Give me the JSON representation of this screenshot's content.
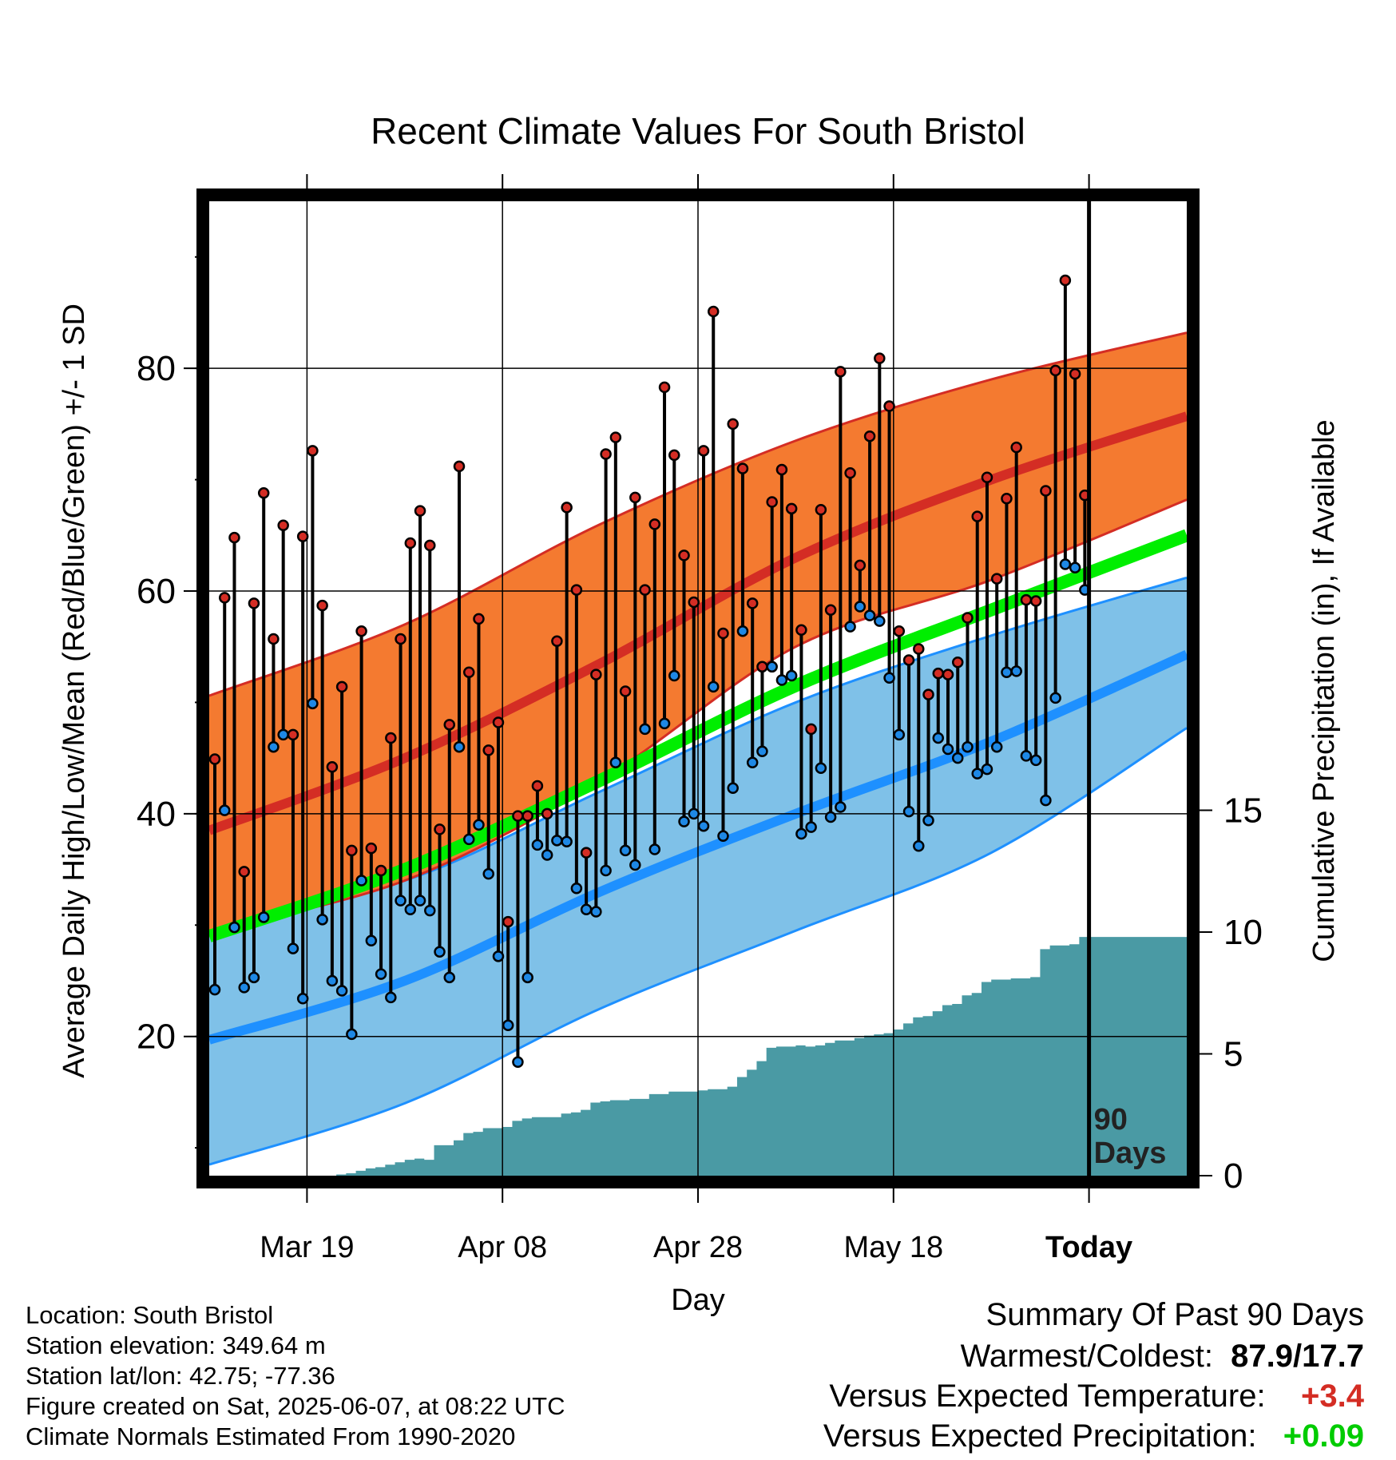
{
  "chart_data": {
    "type": "line",
    "title": "Recent Climate Values For South Bristol",
    "xlabel": "Day",
    "ylabel": "Average Daily High/Low/Mean (Red/Blue/Green) +/- 1 SD",
    "y2label": "Cumulative Precipitation (in), If Available",
    "ylim": [
      7.5,
      95
    ],
    "y2lim": [
      0,
      40
    ],
    "y_ticks": [
      20,
      40,
      60,
      80
    ],
    "y2_ticks": [
      0,
      5,
      10,
      15
    ],
    "x_start": "2025-03-09",
    "x_end": "2025-06-17",
    "x_ticks": [
      {
        "day": "2025-03-19",
        "label": "Mar 19"
      },
      {
        "day": "2025-04-08",
        "label": "Apr 08"
      },
      {
        "day": "2025-04-28",
        "label": "Apr 28"
      },
      {
        "day": "2025-05-18",
        "label": "May 18"
      },
      {
        "day": "2025-06-07",
        "label": "Today"
      }
    ],
    "today_label": "90\nDays",
    "grid": true,
    "normals": {
      "days": [
        "2025-03-09",
        "2025-03-29",
        "2025-04-18",
        "2025-05-08",
        "2025-05-28",
        "2025-06-17"
      ],
      "high_mean": [
        38.5,
        45,
        53.5,
        63,
        70,
        75.7
      ],
      "high_upper": [
        50.6,
        57,
        66,
        73.5,
        79,
        83.2
      ],
      "high_lower": [
        29.5,
        34,
        43,
        55,
        61,
        68.2
      ],
      "low_mean": [
        19.7,
        25,
        33,
        40,
        46.5,
        54.3
      ],
      "low_upper": [
        30.7,
        34,
        42,
        50,
        56,
        61.2
      ],
      "low_lower": [
        8.5,
        14,
        22.5,
        29.5,
        36.5,
        47.7
      ],
      "mean": [
        29,
        35,
        43,
        51.5,
        58.3,
        65
      ]
    },
    "series": [
      {
        "name": "High",
        "x": [
          "2025-03-09",
          "2025-03-10",
          "2025-03-11",
          "2025-03-12",
          "2025-03-13",
          "2025-03-14",
          "2025-03-15",
          "2025-03-16",
          "2025-03-17",
          "2025-03-18",
          "2025-03-19",
          "2025-03-20",
          "2025-03-21",
          "2025-03-22",
          "2025-03-23",
          "2025-03-24",
          "2025-03-25",
          "2025-03-26",
          "2025-03-27",
          "2025-03-28",
          "2025-03-29",
          "2025-03-30",
          "2025-03-31",
          "2025-04-01",
          "2025-04-02",
          "2025-04-03",
          "2025-04-04",
          "2025-04-05",
          "2025-04-06",
          "2025-04-07",
          "2025-04-08",
          "2025-04-09",
          "2025-04-10",
          "2025-04-11",
          "2025-04-12",
          "2025-04-13",
          "2025-04-14",
          "2025-04-15",
          "2025-04-16",
          "2025-04-17",
          "2025-04-18",
          "2025-04-19",
          "2025-04-20",
          "2025-04-21",
          "2025-04-22",
          "2025-04-23",
          "2025-04-24",
          "2025-04-25",
          "2025-04-26",
          "2025-04-27",
          "2025-04-28",
          "2025-04-29",
          "2025-04-30",
          "2025-05-01",
          "2025-05-02",
          "2025-05-03",
          "2025-05-04",
          "2025-05-05",
          "2025-05-06",
          "2025-05-07",
          "2025-05-08",
          "2025-05-09",
          "2025-05-10",
          "2025-05-11",
          "2025-05-12",
          "2025-05-13",
          "2025-05-14",
          "2025-05-15",
          "2025-05-16",
          "2025-05-17",
          "2025-05-18",
          "2025-05-19",
          "2025-05-20",
          "2025-05-21",
          "2025-05-22",
          "2025-05-23",
          "2025-05-24",
          "2025-05-25",
          "2025-05-26",
          "2025-05-27",
          "2025-05-28",
          "2025-05-29",
          "2025-05-30",
          "2025-05-31",
          "2025-06-01",
          "2025-06-02",
          "2025-06-03",
          "2025-06-04",
          "2025-06-05",
          "2025-06-06"
        ],
        "values": [
          44.9,
          59.4,
          64.8,
          34.8,
          58.9,
          68.8,
          55.7,
          65.9,
          47.1,
          64.9,
          72.6,
          58.7,
          44.2,
          51.4,
          36.7,
          56.4,
          36.9,
          34.9,
          46.8,
          55.7,
          64.3,
          67.2,
          64.1,
          38.6,
          48,
          71.2,
          52.7,
          57.5,
          45.7,
          48.2,
          30.3,
          39.8,
          39.8,
          42.5,
          40,
          55.5,
          67.5,
          60.1,
          36.5,
          52.5,
          72.3,
          73.8,
          51,
          68.4,
          60.1,
          66,
          78.3,
          72.2,
          63.2,
          59,
          72.6,
          85.1,
          56.2,
          75,
          71,
          58.9,
          53.2,
          68,
          70.9,
          67.4,
          56.5,
          47.6,
          67.3,
          58.3,
          79.7,
          70.6,
          62.3,
          73.9,
          80.9,
          76.6,
          56.4,
          53.8,
          54.8,
          50.7,
          52.6,
          52.5,
          53.6,
          57.6,
          66.7,
          70.2,
          61.1,
          68.3,
          72.9,
          59.2,
          59.1,
          69,
          79.8,
          87.9,
          79.5,
          68.6
        ]
      },
      {
        "name": "Low",
        "x": [
          "2025-03-09",
          "2025-03-10",
          "2025-03-11",
          "2025-03-12",
          "2025-03-13",
          "2025-03-14",
          "2025-03-15",
          "2025-03-16",
          "2025-03-17",
          "2025-03-18",
          "2025-03-19",
          "2025-03-20",
          "2025-03-21",
          "2025-03-22",
          "2025-03-23",
          "2025-03-24",
          "2025-03-25",
          "2025-03-26",
          "2025-03-27",
          "2025-03-28",
          "2025-03-29",
          "2025-03-30",
          "2025-03-31",
          "2025-04-01",
          "2025-04-02",
          "2025-04-03",
          "2025-04-04",
          "2025-04-05",
          "2025-04-06",
          "2025-04-07",
          "2025-04-08",
          "2025-04-09",
          "2025-04-10",
          "2025-04-11",
          "2025-04-12",
          "2025-04-13",
          "2025-04-14",
          "2025-04-15",
          "2025-04-16",
          "2025-04-17",
          "2025-04-18",
          "2025-04-19",
          "2025-04-20",
          "2025-04-21",
          "2025-04-22",
          "2025-04-23",
          "2025-04-24",
          "2025-04-25",
          "2025-04-26",
          "2025-04-27",
          "2025-04-28",
          "2025-04-29",
          "2025-04-30",
          "2025-05-01",
          "2025-05-02",
          "2025-05-03",
          "2025-05-04",
          "2025-05-05",
          "2025-05-06",
          "2025-05-07",
          "2025-05-08",
          "2025-05-09",
          "2025-05-10",
          "2025-05-11",
          "2025-05-12",
          "2025-05-13",
          "2025-05-14",
          "2025-05-15",
          "2025-05-16",
          "2025-05-17",
          "2025-05-18",
          "2025-05-19",
          "2025-05-20",
          "2025-05-21",
          "2025-05-22",
          "2025-05-23",
          "2025-05-24",
          "2025-05-25",
          "2025-05-26",
          "2025-05-27",
          "2025-05-28",
          "2025-05-29",
          "2025-05-30",
          "2025-05-31",
          "2025-06-01",
          "2025-06-02",
          "2025-06-03",
          "2025-06-04",
          "2025-06-05",
          "2025-06-06"
        ],
        "values": [
          24.2,
          40.3,
          29.8,
          24.4,
          25.3,
          30.7,
          46,
          47.1,
          27.9,
          23.4,
          49.9,
          30.5,
          25,
          24.1,
          20.2,
          34,
          28.6,
          25.6,
          23.5,
          32.2,
          31.4,
          32.2,
          31.3,
          27.6,
          25.3,
          46,
          37.7,
          39,
          34.6,
          27.2,
          21,
          17.7,
          25.3,
          37.2,
          36.3,
          37.6,
          37.5,
          33.3,
          31.4,
          31.2,
          34.9,
          44.6,
          36.7,
          35.4,
          47.6,
          36.8,
          48.1,
          52.4,
          39.3,
          40,
          38.9,
          51.4,
          38,
          42.3,
          56.4,
          44.6,
          45.6,
          53.2,
          52,
          52.4,
          38.2,
          38.8,
          44.1,
          39.7,
          40.6,
          56.8,
          58.6,
          57.8,
          57.3,
          52.2,
          47.1,
          40.2,
          37.1,
          39.4,
          46.8,
          45.8,
          45,
          46,
          43.6,
          44,
          46,
          52.7,
          52.8,
          45.2,
          44.8,
          41.2,
          50.4,
          62.4,
          62.1,
          60.1
        ]
      }
    ],
    "precip_cumulative": {
      "days": [
        "2025-03-09",
        "2025-03-21",
        "2025-03-22",
        "2025-03-23",
        "2025-03-24",
        "2025-03-25",
        "2025-03-26",
        "2025-03-27",
        "2025-03-28",
        "2025-03-29",
        "2025-03-30",
        "2025-03-31",
        "2025-04-01",
        "2025-04-02",
        "2025-04-03",
        "2025-04-04",
        "2025-04-05",
        "2025-04-06",
        "2025-04-07",
        "2025-04-08",
        "2025-04-09",
        "2025-04-10",
        "2025-04-11",
        "2025-04-12",
        "2025-04-13",
        "2025-04-14",
        "2025-04-15",
        "2025-04-16",
        "2025-04-17",
        "2025-04-18",
        "2025-04-19",
        "2025-04-20",
        "2025-04-21",
        "2025-04-22",
        "2025-04-23",
        "2025-04-24",
        "2025-04-25",
        "2025-04-26",
        "2025-04-27",
        "2025-04-28",
        "2025-04-29",
        "2025-04-30",
        "2025-05-01",
        "2025-05-02",
        "2025-05-03",
        "2025-05-04",
        "2025-05-05",
        "2025-05-06",
        "2025-05-07",
        "2025-05-08",
        "2025-05-09",
        "2025-05-10",
        "2025-05-11",
        "2025-05-12",
        "2025-05-13",
        "2025-05-14",
        "2025-05-15",
        "2025-05-16",
        "2025-05-17",
        "2025-05-18",
        "2025-05-19",
        "2025-05-20",
        "2025-05-21",
        "2025-05-22",
        "2025-05-23",
        "2025-05-24",
        "2025-05-25",
        "2025-05-26",
        "2025-05-27",
        "2025-05-28",
        "2025-05-29",
        "2025-05-30",
        "2025-05-31",
        "2025-06-01",
        "2025-06-02",
        "2025-06-03",
        "2025-06-04",
        "2025-06-05",
        "2025-06-06",
        "2025-06-17"
      ],
      "values": [
        0,
        0,
        0.05,
        0.1,
        0.2,
        0.3,
        0.35,
        0.45,
        0.55,
        0.65,
        0.7,
        0.65,
        1.25,
        1.25,
        1.45,
        1.75,
        1.8,
        1.95,
        1.95,
        2,
        2.25,
        2.35,
        2.4,
        2.4,
        2.4,
        2.55,
        2.6,
        2.7,
        3,
        3.05,
        3.1,
        3.1,
        3.15,
        3.15,
        3.35,
        3.35,
        3.45,
        3.45,
        3.45,
        3.5,
        3.55,
        3.55,
        3.65,
        4.05,
        4.35,
        4.7,
        5.25,
        5.3,
        5.3,
        5.35,
        5.3,
        5.35,
        5.45,
        5.55,
        5.55,
        5.65,
        5.75,
        5.8,
        5.85,
        6,
        6.25,
        6.5,
        6.55,
        6.75,
        7,
        7.05,
        7.4,
        7.5,
        7.95,
        8.05,
        8.05,
        8.1,
        8.1,
        8.15,
        9.3,
        9.45,
        9.45,
        9.5,
        9.8,
        9.8
      ]
    }
  },
  "info_lines": [
    "Location: South Bristol",
    "Station elevation: 349.64 m",
    "Station lat/lon: 42.75; -77.36",
    "Figure created on Sat, 2025-06-07, at 08:22 UTC",
    "Climate Normals Estimated From 1990-2020"
  ],
  "summary": {
    "title": "Summary Of Past 90 Days",
    "warm_cold_label": "Warmest/Coldest:",
    "warm_cold_value": "87.9/17.7",
    "temp_label": "Versus Expected Temperature:",
    "temp_value": "+3.4",
    "precip_label": "Versus Expected Precipitation:",
    "precip_value": "+0.09"
  },
  "colors": {
    "high_band": "#f47a30",
    "high_line": "#d42d24",
    "low_band": "#7fc1e8",
    "low_line": "#1e90ff",
    "mean_line": "#00ee00",
    "precip": "#4a9aa4",
    "high_point": "#d42d24",
    "low_point": "#1e88e5",
    "temp_anomaly": "#d42d24",
    "precip_anomaly": "#00cc00"
  }
}
